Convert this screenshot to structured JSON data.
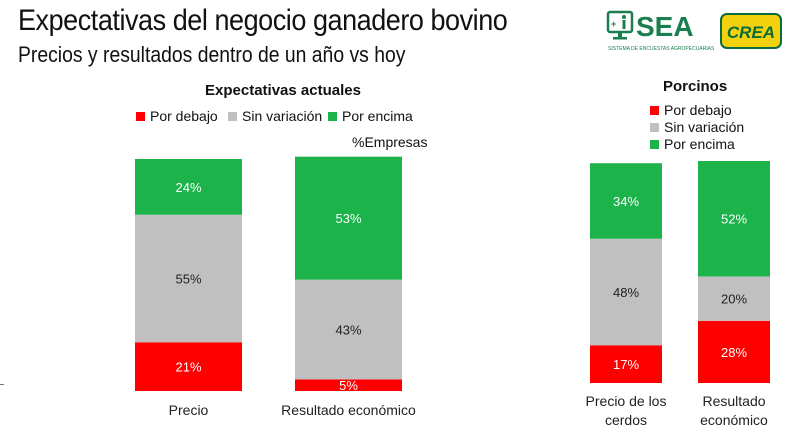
{
  "header": {
    "title": "Expectativas del negocio ganadero bovino",
    "subtitle": "Precios y resultados dentro de un año vs hoy"
  },
  "logos": {
    "sea": {
      "name": "SEA",
      "tagline": "SISTEMA DE ENCUESTAS AGROPECUARIAS",
      "color": "#1a7f4e"
    },
    "crea": {
      "name": "CREA",
      "bg": "#f2d20f",
      "fg": "#0b6b3a"
    }
  },
  "colors": {
    "por_debajo": "#ff0000",
    "sin_variacion": "#c0c0c0",
    "por_encima": "#1bb34a"
  },
  "chart_data": [
    {
      "type": "bar",
      "stacked": true,
      "title": "Expectativas actuales",
      "units_label": "%Empresas",
      "legend": [
        "Por debajo",
        "Sin variación",
        "Por encima"
      ],
      "legend_position": "top",
      "categories": [
        "Precio",
        "Resultado económico"
      ],
      "series": [
        {
          "name": "Por debajo",
          "values": [
            21,
            5
          ],
          "labels": [
            "21%",
            "5%"
          ]
        },
        {
          "name": "Sin variación",
          "values": [
            55,
            43
          ],
          "labels": [
            "55%",
            "43%"
          ]
        },
        {
          "name": "Por encima",
          "values": [
            24,
            53
          ],
          "labels": [
            "24%",
            "53%"
          ]
        }
      ],
      "ylim": [
        0,
        100
      ],
      "grid": false
    },
    {
      "type": "bar",
      "stacked": true,
      "title": "Porcinos",
      "legend": [
        "Por debajo",
        "Sin variación",
        "Por encima"
      ],
      "legend_position": "top",
      "categories": [
        [
          "Precio de los",
          "cerdos"
        ],
        [
          "Resultado",
          "económico"
        ]
      ],
      "series": [
        {
          "name": "Por debajo",
          "values": [
            17,
            28
          ],
          "labels": [
            "17%",
            "28%"
          ]
        },
        {
          "name": "Sin variación",
          "values": [
            48,
            20
          ],
          "labels": [
            "48%",
            "20%"
          ]
        },
        {
          "name": "Por encima",
          "values": [
            34,
            52
          ],
          "labels": [
            "34%",
            "52%"
          ]
        }
      ],
      "ylim": [
        0,
        100
      ],
      "grid": false
    }
  ]
}
